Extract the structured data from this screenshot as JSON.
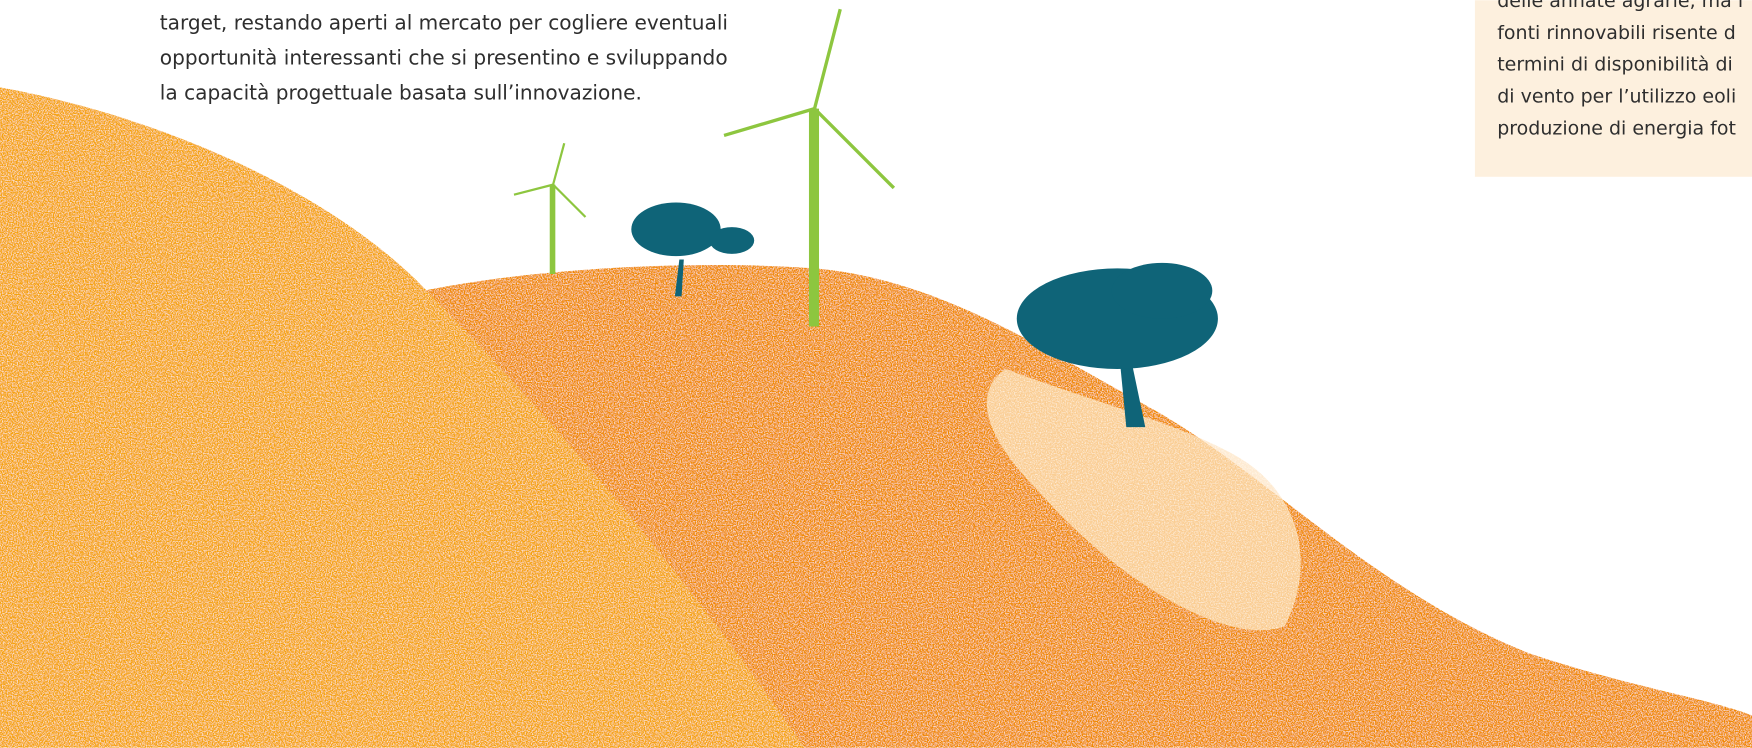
{
  "intro": {
    "lines": [
      "target, restando aperti al mercato per cogliere eventuali",
      "opportunità interessanti che si presentino e sviluppando",
      "la capacità progettuale basata sull’innovazione."
    ]
  },
  "sidebar": {
    "lines": [
      "delle annate agrarie, ma l",
      "fonti rinnovabili risente d",
      "termini di disponibilità di",
      "di vento per l’utilizzo eoli",
      "produzione di energia fot"
    ]
  }
}
